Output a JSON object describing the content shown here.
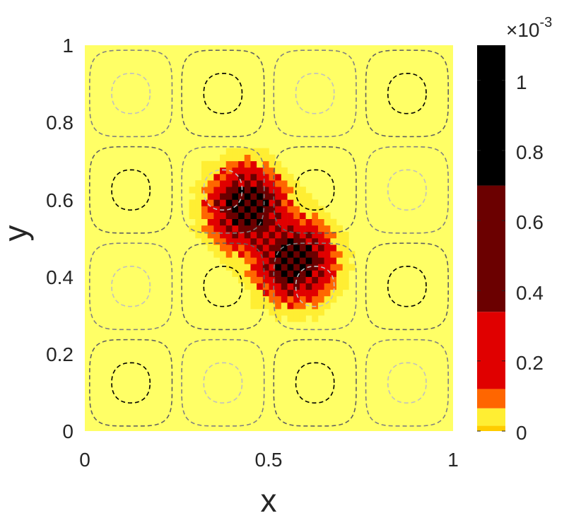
{
  "chart_data": {
    "type": "heatmap",
    "title": "",
    "xlabel": "x",
    "ylabel": "y",
    "xlim": [
      0,
      1
    ],
    "ylim": [
      0,
      1
    ],
    "xticks": [
      "0",
      "0.5",
      "1"
    ],
    "yticks": [
      "0",
      "0.2",
      "0.4",
      "0.6",
      "0.8",
      "1"
    ],
    "field": {
      "grid_size": 60,
      "background_color": "#FFFF66",
      "peaks": [
        {
          "x": 0.44,
          "y": 0.58,
          "max": 0.0011,
          "sigma": 0.055
        },
        {
          "x": 0.57,
          "y": 0.44,
          "max": 0.0011,
          "sigma": 0.055
        }
      ]
    },
    "contours": {
      "function": "sin(4*pi*x)*sin(4*pi*y)",
      "levels": [
        -0.75,
        -0.25,
        0.25,
        0.75
      ],
      "style": "dashed",
      "colors": {
        "0.75": "#000000",
        "0.25": "#606060",
        "-0.25": "#808080",
        "-0.75": "#C0C0C0"
      }
    },
    "colorbar": {
      "multiplier": "×10",
      "exponent": "-3",
      "range": [
        0,
        1.1
      ],
      "ticks": [
        "0",
        "0.2",
        "0.4",
        "0.6",
        "0.8",
        "1"
      ],
      "bands": [
        {
          "from": 0,
          "to": 0.015,
          "color": "#FFCC00"
        },
        {
          "from": 0.015,
          "to": 0.065,
          "color": "#FFEE33"
        },
        {
          "from": 0.065,
          "to": 0.12,
          "color": "#FF6600"
        },
        {
          "from": 0.12,
          "to": 0.34,
          "color": "#E00000"
        },
        {
          "from": 0.34,
          "to": 0.7,
          "color": "#6B0000"
        },
        {
          "from": 0.7,
          "to": 1.1,
          "color": "#000000"
        }
      ]
    }
  }
}
